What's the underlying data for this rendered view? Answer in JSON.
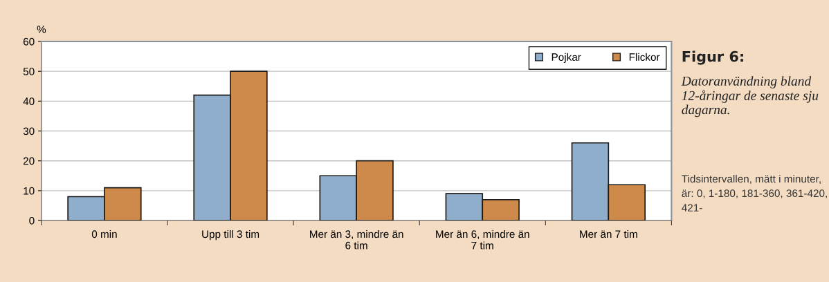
{
  "chart_data": {
    "type": "bar",
    "title": "Figur 6:",
    "subtitle": "Datoranvändning bland 12-åringar de senaste sju dagarna.",
    "ylabel": "%",
    "categories": [
      "0 min",
      "Upp till 3 tim",
      "Mer än 3, mindre än\n6 tim",
      "Mer än 6, mindre än\n7 tim",
      "Mer än 7 tim"
    ],
    "series": [
      {
        "name": "Pojkar",
        "color": "#8faecb",
        "values": [
          8,
          42,
          15,
          9,
          26
        ]
      },
      {
        "name": "Flickor",
        "color": "#cd8a4b",
        "values": [
          11,
          50,
          20,
          7,
          12
        ]
      }
    ],
    "ylim": [
      0,
      60
    ],
    "yticks": [
      0,
      10,
      20,
      30,
      40,
      50,
      60
    ],
    "grid": "y",
    "legend": "top right",
    "annotations": [
      "Tidsintervallen, mätt i minuter, är: 0, 1-180, 181-360, 361-420, 421-"
    ]
  }
}
